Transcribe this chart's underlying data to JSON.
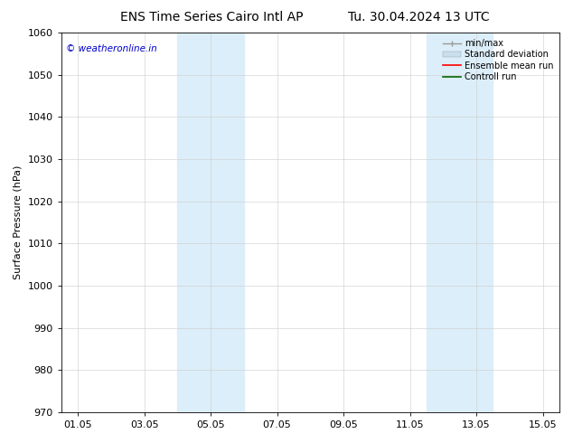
{
  "title_left": "ENS Time Series Cairo Intl AP",
  "title_right": "Tu. 30.04.2024 13 UTC",
  "ylabel": "Surface Pressure (hPa)",
  "ylim": [
    970,
    1060
  ],
  "yticks": [
    970,
    980,
    990,
    1000,
    1010,
    1020,
    1030,
    1040,
    1050,
    1060
  ],
  "xtick_labels": [
    "01.05",
    "03.05",
    "05.05",
    "07.05",
    "09.05",
    "11.05",
    "13.05",
    "15.05"
  ],
  "xtick_positions": [
    0,
    2,
    4,
    6,
    8,
    10,
    12,
    14
  ],
  "xlim": [
    -0.5,
    14.5
  ],
  "shaded_bands": [
    {
      "x_start": 3.0,
      "x_end": 5.0,
      "color": "#dceef9"
    },
    {
      "x_start": 10.5,
      "x_end": 12.5,
      "color": "#dceef9"
    }
  ],
  "watermark_text": "© weatheronline.in",
  "watermark_color": "#0000cc",
  "legend_entries": [
    {
      "label": "min/max",
      "color": "#aaaaaa"
    },
    {
      "label": "Standard deviation",
      "color": "#c8dff0"
    },
    {
      "label": "Ensemble mean run",
      "color": "#ff0000"
    },
    {
      "label": "Controll run",
      "color": "#006600"
    }
  ],
  "background_color": "#ffffff",
  "plot_bg_color": "#ffffff",
  "grid_color": "#cccccc",
  "title_fontsize": 10,
  "axis_fontsize": 8,
  "tick_fontsize": 8,
  "legend_fontsize": 7
}
